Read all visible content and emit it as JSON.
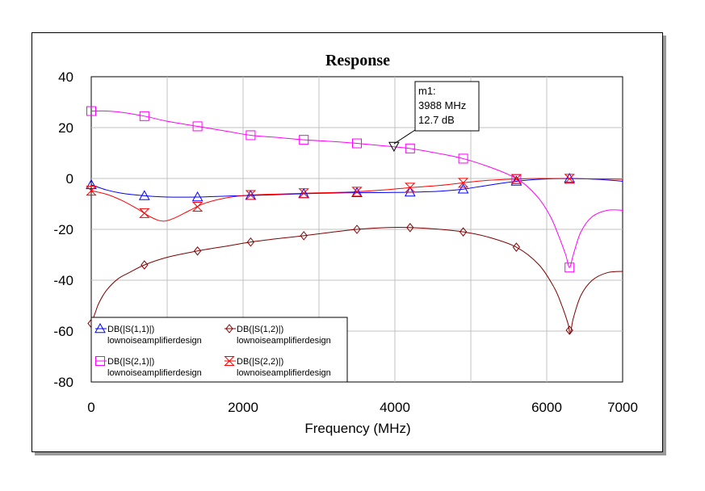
{
  "chart_data": {
    "type": "line",
    "title": "Response",
    "xlabel": "Frequency (MHz)",
    "ylabel": "",
    "xlim": [
      0,
      7000
    ],
    "ylim": [
      -80,
      40
    ],
    "x_ticks": [
      "0",
      "2000",
      "4000",
      "6000",
      "7000"
    ],
    "x_tick_values": [
      0,
      2000,
      4000,
      6000,
      7000
    ],
    "y_ticks": [
      "40",
      "20",
      "0",
      "-20",
      "-40",
      "-60",
      "-80"
    ],
    "y_tick_values": [
      40,
      20,
      0,
      -20,
      -40,
      -60,
      -80
    ],
    "x_grid": [
      0,
      1000,
      2000,
      3000,
      4000,
      5000,
      6000,
      7000
    ],
    "y_grid": [
      40,
      20,
      0,
      -20,
      -40,
      -60,
      -80
    ],
    "grid": true,
    "legend_position": "bottom-left",
    "series": [
      {
        "name": "DB(|S(1,1)|)",
        "source": "lownoiseamplifierdesign",
        "color": "#0000ff",
        "marker": "triangle-up",
        "x": [
          0,
          200,
          400,
          700,
          1000,
          1400,
          1800,
          2100,
          2500,
          2800,
          3200,
          3500,
          3900,
          4200,
          4600,
          4900,
          5200,
          5600,
          5900,
          6300,
          6700,
          7000
        ],
        "y": [
          -2.5,
          -4.5,
          -5.8,
          -6.8,
          -7.3,
          -7.3,
          -6.9,
          -6.7,
          -6.3,
          -6,
          -5.7,
          -5.6,
          -5.5,
          -5.4,
          -5,
          -4.2,
          -2.8,
          -1.1,
          -0.3,
          0,
          -0.4,
          -1.1
        ],
        "marker_x": [
          0,
          700,
          1400,
          2100,
          2800,
          3500,
          4200,
          4900,
          5600,
          6300
        ]
      },
      {
        "name": "DB(|S(1,2)|)",
        "source": "lownoiseamplifierdesign",
        "color": "#800000",
        "marker": "diamond",
        "x": [
          0,
          50,
          100,
          200,
          350,
          500,
          700,
          1000,
          1400,
          1800,
          2100,
          2500,
          2800,
          3200,
          3500,
          3900,
          4200,
          4600,
          4900,
          5200,
          5600,
          5900,
          6100,
          6200,
          6280,
          6310,
          6350,
          6450,
          6600,
          6800,
          7000
        ],
        "y": [
          -57,
          -53,
          -49,
          -44,
          -39.5,
          -37,
          -34,
          -31,
          -28.5,
          -26.5,
          -25,
          -23.5,
          -22.5,
          -21,
          -20,
          -19.3,
          -19.3,
          -20,
          -21,
          -22.8,
          -27,
          -34,
          -43,
          -50,
          -57,
          -61,
          -55,
          -46,
          -40,
          -37,
          -36.5
        ],
        "marker_x": [
          0,
          700,
          1400,
          2100,
          2800,
          3500,
          4200,
          4900,
          5600,
          6300
        ]
      },
      {
        "name": "DB(|S(2,1)|)",
        "source": "lownoiseamplifierdesign",
        "color": "#ff00ff",
        "marker": "square",
        "x": [
          0,
          200,
          400,
          700,
          1000,
          1400,
          1800,
          2100,
          2500,
          2800,
          3200,
          3500,
          3900,
          4200,
          4600,
          4900,
          5200,
          5500,
          5700,
          5900,
          6050,
          6150,
          6250,
          6300,
          6350,
          6450,
          6600,
          6800,
          7000
        ],
        "y": [
          26.5,
          26.5,
          26,
          24.5,
          22.5,
          20.5,
          18.5,
          17,
          16,
          15.2,
          14.5,
          13.8,
          12.7,
          11.8,
          9.7,
          7.8,
          5,
          1.5,
          -2,
          -8,
          -15,
          -22,
          -30,
          -35,
          -30,
          -21,
          -15,
          -12.5,
          -12.5
        ],
        "marker_x": [
          0,
          700,
          1400,
          2100,
          2800,
          3500,
          4200,
          4900,
          5600,
          6300
        ]
      },
      {
        "name": "DB(|S(2,2)|)",
        "source": "lownoiseamplifierdesign",
        "color": "#ff0000",
        "marker": "hourglass",
        "x": [
          0,
          200,
          400,
          600,
          800,
          950,
          1100,
          1300,
          1500,
          1800,
          2100,
          2500,
          2800,
          3200,
          3500,
          3900,
          4200,
          4600,
          4900,
          5200,
          5600,
          5900,
          6300,
          6700,
          7000
        ],
        "y": [
          -4.8,
          -6.2,
          -8.6,
          -11.8,
          -15.4,
          -16.8,
          -15.5,
          -12.5,
          -9.7,
          -7.5,
          -6.5,
          -6.1,
          -5.8,
          -5.5,
          -5.2,
          -4.4,
          -3.6,
          -2.7,
          -1.7,
          -0.8,
          -0.2,
          0,
          -0.1,
          -0.2,
          -0.3
        ],
        "marker_x": [
          0,
          700,
          1400,
          2100,
          2800,
          3500,
          4200,
          4900,
          5600,
          6300
        ]
      }
    ],
    "marker": {
      "name": "m1:",
      "x_label": "3988 MHz",
      "y_label": "12.7 dB",
      "x": 3988,
      "y": 12.7
    }
  }
}
